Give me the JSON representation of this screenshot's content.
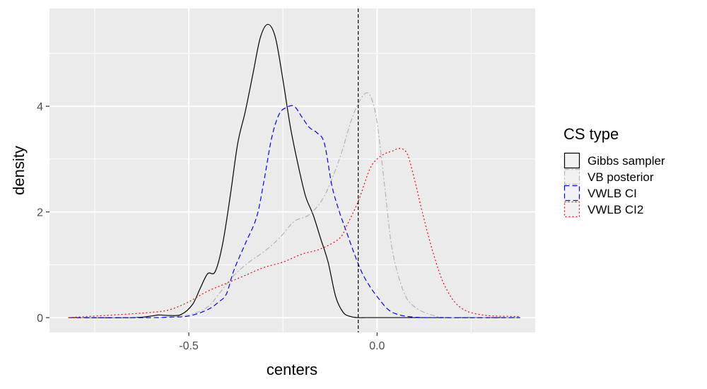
{
  "chart_data": {
    "type": "line",
    "title": "",
    "xlabel": "centers",
    "ylabel": "density",
    "xlim": [
      -0.87,
      0.42
    ],
    "ylim": [
      -0.28,
      5.85
    ],
    "x_ticks": [
      -0.5,
      0.0
    ],
    "x_tick_labels": [
      "-0.5",
      "0.0"
    ],
    "x_minor_ticks": [
      -0.75,
      -0.25,
      0.25
    ],
    "y_ticks": [
      0,
      2,
      4
    ],
    "y_tick_labels": [
      "0",
      "2",
      "4"
    ],
    "y_minor_ticks": [
      1,
      3,
      5
    ],
    "grid": true,
    "legend": {
      "title": "CS type",
      "position": "right"
    },
    "vline": {
      "x": -0.05,
      "style": "dashed",
      "color": "#000000"
    },
    "series": [
      {
        "name": "Gibbs sampler",
        "color": "#000000",
        "dash": "solid",
        "x": [
          -0.82,
          -0.65,
          -0.6,
          -0.58,
          -0.55,
          -0.52,
          -0.49,
          -0.47,
          -0.45,
          -0.43,
          -0.41,
          -0.39,
          -0.37,
          -0.35,
          -0.33,
          -0.31,
          -0.29,
          -0.27,
          -0.25,
          -0.23,
          -0.21,
          -0.19,
          -0.17,
          -0.15,
          -0.13,
          -0.11,
          -0.09,
          -0.07,
          -0.05,
          -0.03,
          0.0,
          0.38
        ],
        "y": [
          0.0,
          0.0,
          0.03,
          0.05,
          0.04,
          0.06,
          0.25,
          0.55,
          0.83,
          0.87,
          1.4,
          2.3,
          3.3,
          3.9,
          4.6,
          5.3,
          5.55,
          5.3,
          4.5,
          3.6,
          2.9,
          2.3,
          1.95,
          1.5,
          1.05,
          0.4,
          0.1,
          0.02,
          0.0,
          0.0,
          0.0,
          0.0
        ]
      },
      {
        "name": "VB posterior",
        "color": "#b3b3b3",
        "dash": "dashdot",
        "x": [
          -0.82,
          -0.6,
          -0.55,
          -0.5,
          -0.45,
          -0.42,
          -0.38,
          -0.34,
          -0.3,
          -0.26,
          -0.22,
          -0.18,
          -0.14,
          -0.1,
          -0.07,
          -0.05,
          -0.03,
          -0.015,
          0.0,
          0.02,
          0.04,
          0.07,
          0.1,
          0.15,
          0.2,
          0.38
        ],
        "y": [
          0.0,
          0.0,
          0.02,
          0.05,
          0.2,
          0.45,
          0.8,
          1.05,
          1.25,
          1.5,
          1.82,
          1.95,
          2.3,
          3.0,
          3.7,
          4.05,
          4.25,
          4.15,
          3.7,
          2.5,
          1.3,
          0.5,
          0.2,
          0.04,
          0.0,
          0.0
        ]
      },
      {
        "name": "VWLB CI",
        "color": "#0000ff",
        "dash": "dashed",
        "x": [
          -0.82,
          -0.6,
          -0.55,
          -0.5,
          -0.45,
          -0.42,
          -0.4,
          -0.38,
          -0.35,
          -0.32,
          -0.3,
          -0.28,
          -0.26,
          -0.24,
          -0.22,
          -0.2,
          -0.18,
          -0.16,
          -0.14,
          -0.12,
          -0.1,
          -0.08,
          -0.06,
          -0.04,
          -0.02,
          0.0,
          0.03,
          0.06,
          0.1,
          0.15,
          0.38
        ],
        "y": [
          0.0,
          0.0,
          0.01,
          0.03,
          0.15,
          0.3,
          0.45,
          0.9,
          1.4,
          1.9,
          2.6,
          3.4,
          3.85,
          3.98,
          4.0,
          3.8,
          3.6,
          3.5,
          3.3,
          2.5,
          2.0,
          1.6,
          1.2,
          0.85,
          0.6,
          0.4,
          0.15,
          0.05,
          0.01,
          0.0,
          0.0
        ]
      },
      {
        "name": "VWLB CI2",
        "color": "#ff0000",
        "dash": "dotted",
        "x": [
          -0.82,
          -0.7,
          -0.6,
          -0.55,
          -0.5,
          -0.45,
          -0.4,
          -0.35,
          -0.3,
          -0.25,
          -0.2,
          -0.15,
          -0.1,
          -0.08,
          -0.05,
          -0.02,
          0.0,
          0.02,
          0.04,
          0.06,
          0.08,
          0.1,
          0.12,
          0.15,
          0.18,
          0.22,
          0.28,
          0.38
        ],
        "y": [
          0.0,
          0.05,
          0.1,
          0.15,
          0.3,
          0.5,
          0.65,
          0.8,
          0.95,
          1.05,
          1.2,
          1.3,
          1.5,
          1.75,
          2.2,
          2.8,
          3.0,
          3.1,
          3.15,
          3.2,
          3.1,
          2.6,
          2.0,
          1.2,
          0.6,
          0.2,
          0.05,
          0.02
        ]
      }
    ]
  }
}
